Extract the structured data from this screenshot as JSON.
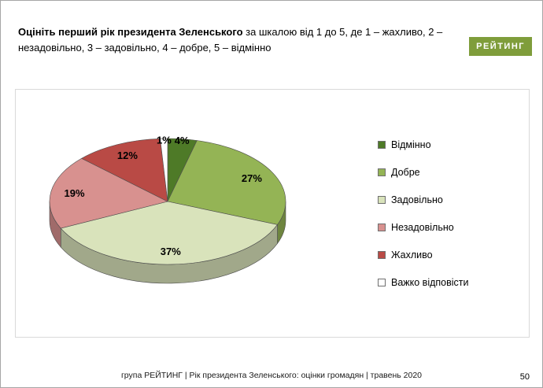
{
  "page": {
    "title_bold": "Оцініть перший рік президента Зеленського",
    "title_rest": " за шкалою від 1 до 5, де 1 – жахливо, 2 – незадовільно, 3 – задовільно, 4 – добре, 5 – відмінно",
    "logo_text": "РЕЙТИНГ",
    "logo_color": "#7f9d3b",
    "footer_text": "група РЕЙТИНГ |  Рік президента Зеленського: оцінки громадян | травень 2020",
    "page_number": "50"
  },
  "chart_data": {
    "type": "pie",
    "effect": "3d",
    "start_angle_deg": 0,
    "direction": "clockwise",
    "legend_position": "right",
    "title": "Оцініть перший рік президента Зеленського за шкалою від 1 до 5",
    "slices": [
      {
        "label": "Відмінно",
        "value": 4,
        "color": "#4e7a27"
      },
      {
        "label": "Добре",
        "value": 27,
        "color": "#94b455"
      },
      {
        "label": "Задовільно",
        "value": 37,
        "color": "#d9e3bb"
      },
      {
        "label": "Незадовільно",
        "value": 19,
        "color": "#d8918f"
      },
      {
        "label": "Жахливо",
        "value": 12,
        "color": "#b94a45"
      },
      {
        "label": "Важко відповісти",
        "value": 1,
        "color": "#ffffff"
      }
    ]
  }
}
